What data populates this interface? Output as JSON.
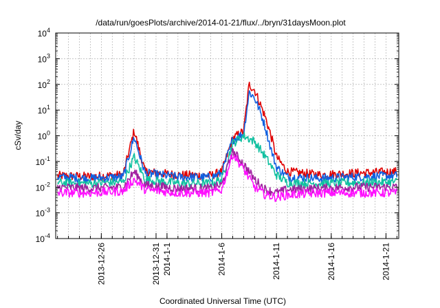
{
  "chart_data": {
    "type": "line",
    "title": "/data/run/goesPlots/archive/2014-01-21/flux/../bryn/31daysMoon.plot",
    "xlabel": "Coordinated Universal Time (UTC)",
    "ylabel": "cSv/day",
    "x_range": [
      "2013-12-21T20:00",
      "2014-01-22T04:00"
    ],
    "x_ticks": [
      "2013-12-26",
      "2013-12-31",
      "2014-1-1",
      "2014-1-6",
      "2014-1-11",
      "2014-1-16",
      "2014-1-21"
    ],
    "x_tick_dates": [
      "2013-12-26",
      "2013-12-31",
      "2014-01-01",
      "2014-01-06",
      "2014-01-11",
      "2014-01-16",
      "2014-01-21"
    ],
    "y_scale": "log",
    "y_range": [
      0.0001,
      10000
    ],
    "y_ticks": [
      {
        "base": "10",
        "exp": "-4"
      },
      {
        "base": "10",
        "exp": "-3"
      },
      {
        "base": "10",
        "exp": "-2"
      },
      {
        "base": "10",
        "exp": "-1"
      },
      {
        "base": "10",
        "exp": "0"
      },
      {
        "base": "10",
        "exp": "1"
      },
      {
        "base": "10",
        "exp": "2"
      },
      {
        "base": "10",
        "exp": "3"
      },
      {
        "base": "10",
        "exp": "4"
      }
    ],
    "grid": true,
    "legend": "none",
    "series": [
      {
        "color": "#e00000",
        "x": [
          "2013-12-22",
          "2013-12-25",
          "2013-12-28",
          "2013-12-29",
          "2013-12-30",
          "2014-01-02",
          "2014-01-05",
          "2014-01-06",
          "2014-01-07",
          "2014-01-08",
          "2014-01-08T12:00",
          "2014-01-09",
          "2014-01-09T12:00",
          "2014-01-10",
          "2014-01-10T12:00",
          "2014-01-11",
          "2014-01-12",
          "2014-01-15",
          "2014-01-18",
          "2014-01-22"
        ],
        "y": [
          0.028,
          0.026,
          0.03,
          1.6,
          0.04,
          0.03,
          0.028,
          0.04,
          0.8,
          1.5,
          100,
          60,
          18,
          5,
          1,
          0.15,
          0.04,
          0.03,
          0.035,
          0.04
        ]
      },
      {
        "color": "#1060e0",
        "x": [
          "2013-12-22",
          "2013-12-25",
          "2013-12-28",
          "2013-12-29",
          "2013-12-30",
          "2014-01-02",
          "2014-01-05",
          "2014-01-06",
          "2014-01-07",
          "2014-01-08",
          "2014-01-08T12:00",
          "2014-01-09",
          "2014-01-09T12:00",
          "2014-01-10",
          "2014-01-10T12:00",
          "2014-01-11",
          "2014-01-12",
          "2014-01-15",
          "2014-01-18",
          "2014-01-22"
        ],
        "y": [
          0.025,
          0.022,
          0.025,
          0.9,
          0.035,
          0.025,
          0.024,
          0.035,
          0.7,
          1.2,
          50,
          30,
          9,
          2,
          0.3,
          0.06,
          0.025,
          0.022,
          0.025,
          0.028
        ]
      },
      {
        "color": "#10c0a0",
        "x": [
          "2013-12-22",
          "2013-12-25",
          "2013-12-28",
          "2013-12-29",
          "2013-12-30",
          "2014-01-02",
          "2014-01-05",
          "2014-01-06",
          "2014-01-07",
          "2014-01-08",
          "2014-01-09",
          "2014-01-10",
          "2014-01-11",
          "2014-01-12",
          "2014-01-15",
          "2014-01-18",
          "2014-01-22"
        ],
        "y": [
          0.015,
          0.014,
          0.016,
          0.15,
          0.02,
          0.014,
          0.014,
          0.02,
          0.5,
          1,
          0.6,
          0.15,
          0.03,
          0.015,
          0.014,
          0.015,
          0.016
        ]
      },
      {
        "color": "#a020a0",
        "x": [
          "2013-12-22",
          "2013-12-25",
          "2013-12-28",
          "2013-12-29",
          "2013-12-30",
          "2014-01-02",
          "2014-01-05",
          "2014-01-06",
          "2014-01-07",
          "2014-01-08",
          "2014-01-09",
          "2014-01-10",
          "2014-01-11",
          "2014-01-12",
          "2014-01-15",
          "2014-01-18",
          "2014-01-22"
        ],
        "y": [
          0.01,
          0.009,
          0.01,
          0.04,
          0.012,
          0.009,
          0.009,
          0.012,
          0.25,
          0.08,
          0.02,
          0.008,
          0.006,
          0.008,
          0.009,
          0.01,
          0.01
        ]
      },
      {
        "color": "#ff10ff",
        "x": [
          "2013-12-22",
          "2013-12-25",
          "2013-12-28",
          "2013-12-29",
          "2013-12-30",
          "2014-01-02",
          "2014-01-05",
          "2014-01-06",
          "2014-01-07",
          "2014-01-08",
          "2014-01-09",
          "2014-01-10",
          "2014-01-11",
          "2014-01-12",
          "2014-01-15",
          "2014-01-18",
          "2014-01-22"
        ],
        "y": [
          0.006,
          0.006,
          0.007,
          0.02,
          0.008,
          0.006,
          0.006,
          0.008,
          0.2,
          0.05,
          0.01,
          0.005,
          0.004,
          0.005,
          0.006,
          0.006,
          0.006
        ]
      }
    ]
  }
}
